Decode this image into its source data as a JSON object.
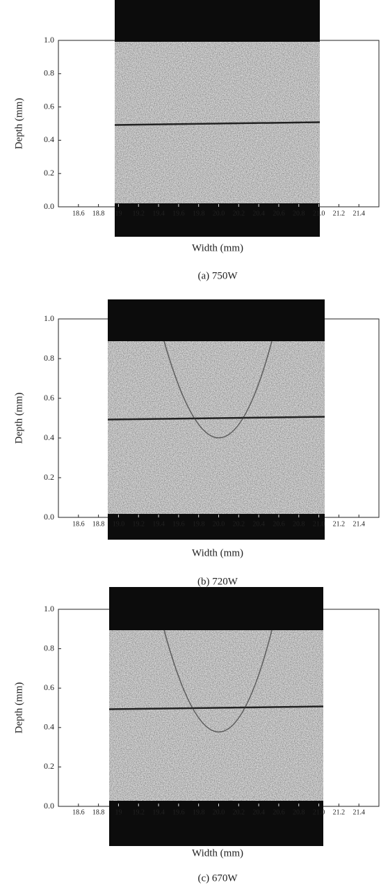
{
  "chart_data": [
    {
      "type": "image",
      "ylabel": "Depth (mm)",
      "xlabel": "Width (mm)",
      "caption": "(a) 750W",
      "xlim": [
        18.4,
        21.6
      ],
      "ylim": [
        0,
        1
      ],
      "xticks": [
        18.6,
        18.8,
        19,
        19.2,
        19.4,
        19.6,
        19.8,
        {
          "value": 20,
          "label": "20.0"
        },
        20.2,
        20.4,
        20.6,
        20.8,
        {
          "value": 21,
          "label": "21.0"
        },
        21.2,
        21.4
      ],
      "yticks": [
        {
          "value": 0,
          "label": "0.0"
        },
        0.2,
        0.4,
        0.6,
        0.8,
        {
          "value": 1,
          "label": "1.0"
        }
      ]
    },
    {
      "type": "image",
      "ylabel": "Depth (mm)",
      "xlabel": "Width (mm)",
      "caption": "(b) 720W",
      "xlim": [
        18.4,
        21.6
      ],
      "ylim": [
        0,
        1
      ],
      "xticks": [
        18.6,
        18.8,
        {
          "value": 19,
          "label": "19.0"
        },
        19.2,
        19.4,
        19.6,
        19.8,
        {
          "value": 20,
          "label": "20.0"
        },
        20.2,
        20.4,
        20.6,
        20.8,
        {
          "value": 21,
          "label": "21.0"
        },
        21.2,
        21.4
      ],
      "yticks": [
        {
          "value": 0,
          "label": "0.0"
        },
        0.2,
        0.4,
        0.6,
        0.8,
        {
          "value": 1,
          "label": "1.0"
        }
      ]
    },
    {
      "type": "image",
      "ylabel": "Depth (mm)",
      "xlabel": "Width (mm)",
      "caption": "(c) 670W",
      "xlim": [
        18.4,
        21.6
      ],
      "ylim": [
        0,
        1
      ],
      "xticks": [
        18.6,
        18.8,
        19,
        19.2,
        19.4,
        19.6,
        19.8,
        {
          "value": 20,
          "label": "20.0"
        },
        20.2,
        20.4,
        20.6,
        20.8,
        {
          "value": 21,
          "label": "21.0"
        },
        21.2,
        21.4
      ],
      "yticks": [
        {
          "value": 0,
          "label": "0.0"
        },
        0.2,
        0.4,
        0.6,
        0.8,
        {
          "value": 1,
          "label": "1.0"
        }
      ]
    }
  ]
}
